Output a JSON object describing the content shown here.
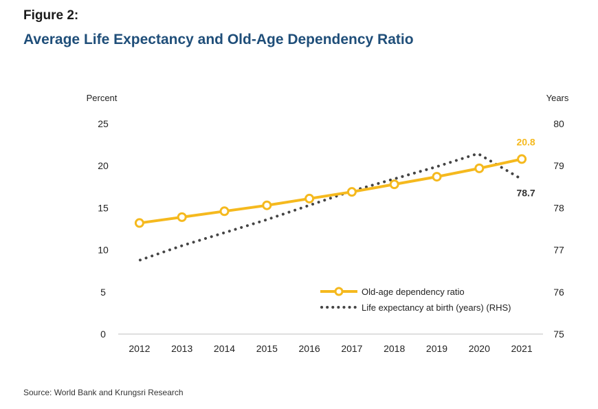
{
  "figure_label": "Figure 2:",
  "title": "Average Life Expectancy and Old-Age Dependency Ratio",
  "source": "Source: World Bank and Krungsri Research",
  "colors": {
    "ratio": "#f5b91e",
    "life": "#444444",
    "title": "#1f4e79"
  },
  "chart_data": {
    "type": "line",
    "title": "Average Life Expectancy and Old-Age Dependency Ratio",
    "categories": [
      "2012",
      "2013",
      "2014",
      "2015",
      "2016",
      "2017",
      "2018",
      "2019",
      "2020",
      "2021"
    ],
    "y_left": {
      "label": "Percent",
      "ylim": [
        0,
        25
      ],
      "ticks": [
        0,
        5,
        10,
        15,
        20,
        25
      ]
    },
    "y_right": {
      "label": "Years",
      "ylim": [
        75,
        80
      ],
      "ticks": [
        75,
        76,
        77,
        78,
        79,
        80
      ]
    },
    "grid": false,
    "legend_position": "bottom-right",
    "series": [
      {
        "name": "Old-age dependency ratio",
        "axis": "left",
        "style": "solid-with-circle-markers",
        "color": "#f5b91e",
        "values": [
          13.2,
          13.9,
          14.6,
          15.3,
          16.1,
          16.9,
          17.8,
          18.7,
          19.7,
          20.8
        ]
      },
      {
        "name": "Life expectancy at birth (years) (RHS)",
        "axis": "right",
        "style": "dotted",
        "color": "#444444",
        "values": [
          76.76,
          77.09,
          77.4,
          77.71,
          78.05,
          78.39,
          78.68,
          78.97,
          79.29,
          78.7
        ]
      }
    ],
    "annotations": [
      {
        "series": 0,
        "index": 9,
        "text": "20.8",
        "color": "#f5b91e"
      },
      {
        "series": 1,
        "index": 9,
        "text": "78.7",
        "color": "#333333"
      }
    ]
  }
}
